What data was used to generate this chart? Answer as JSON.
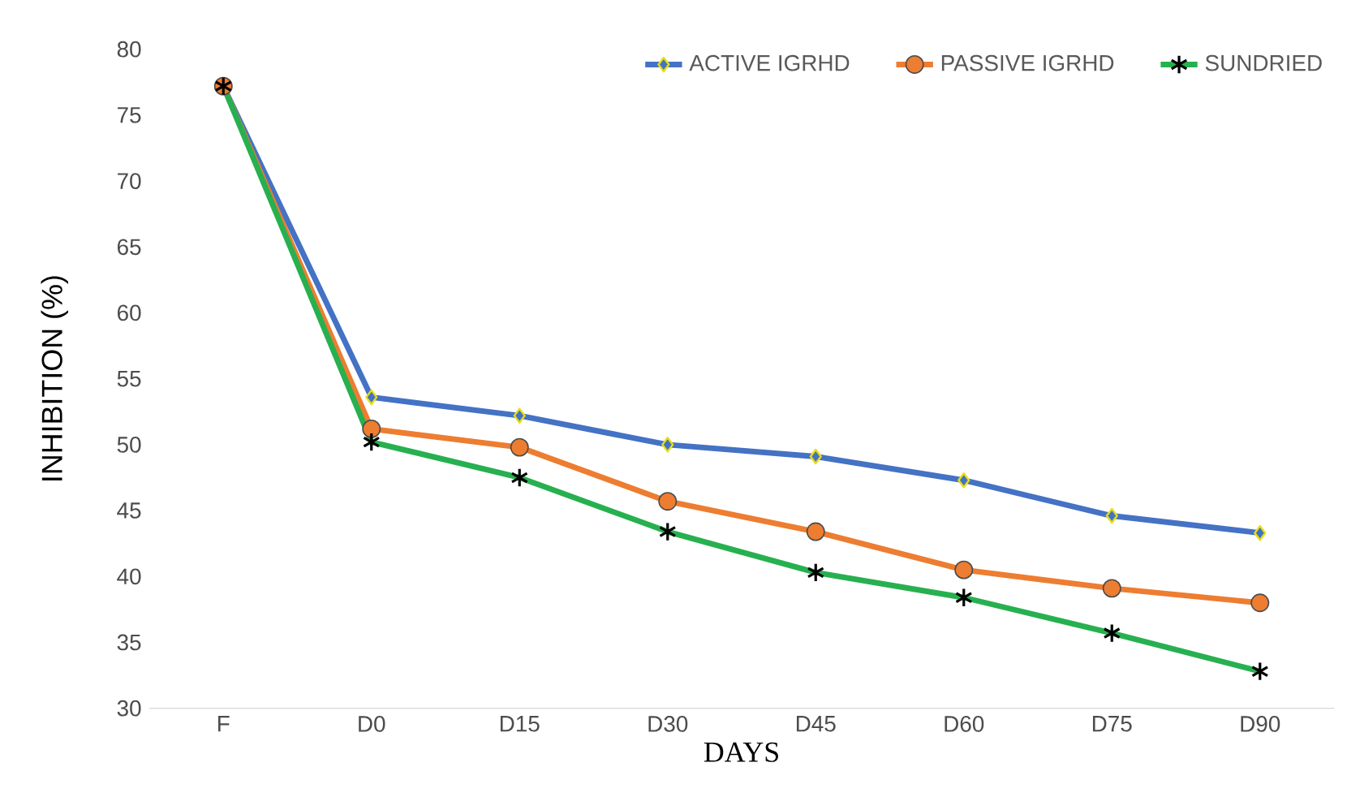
{
  "chart_data": {
    "type": "line",
    "xlabel": "DAYS",
    "ylabel": "INHIBITION (%)",
    "categories": [
      "F",
      "D0",
      "D15",
      "D30",
      "D45",
      "D60",
      "D75",
      "D90"
    ],
    "ylim": [
      30,
      80
    ],
    "yticks": [
      30,
      35,
      40,
      45,
      50,
      55,
      60,
      65,
      70,
      75,
      80
    ],
    "legend": "top right",
    "grid": false,
    "series": [
      {
        "name": "ACTIVE IGRHD",
        "color": "#4472c4",
        "marker": "diamond",
        "values": [
          77.2,
          53.6,
          52.2,
          50.0,
          49.1,
          47.3,
          44.6,
          43.3
        ]
      },
      {
        "name": "PASSIVE IGRHD",
        "color": "#ed7d31",
        "marker": "circle",
        "values": [
          77.2,
          51.2,
          49.8,
          45.7,
          43.4,
          40.5,
          39.1,
          38.0
        ]
      },
      {
        "name": "SUNDRIED",
        "color": "#27b04f",
        "marker": "cross",
        "values": [
          77.2,
          50.2,
          47.5,
          43.4,
          40.3,
          38.4,
          35.7,
          32.8
        ]
      }
    ]
  }
}
